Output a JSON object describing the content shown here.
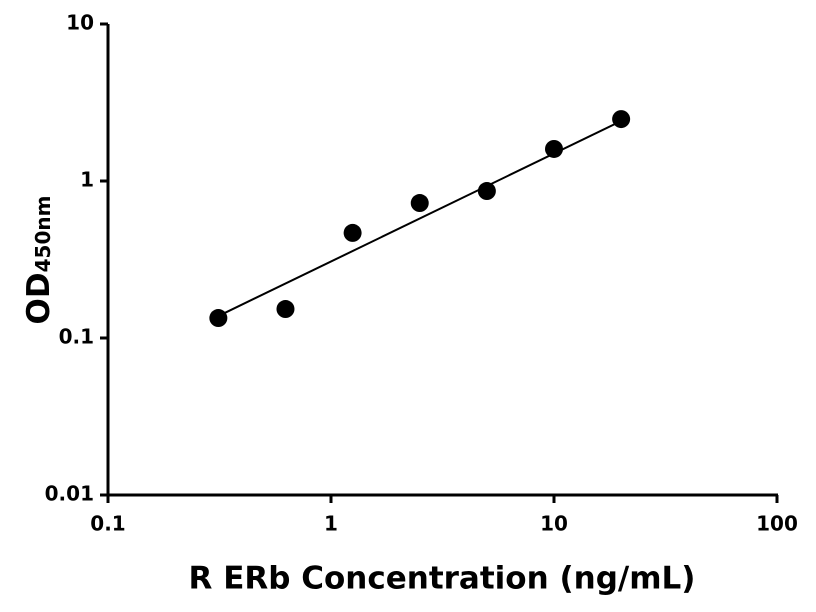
{
  "chart_data": {
    "type": "scatter",
    "x_label": "R ERb Concentration (ng/mL)",
    "y_label": "OD",
    "y_label_subscript": "450nm",
    "xscale": "log",
    "yscale": "log",
    "xlim": [
      0.1,
      100
    ],
    "xticks": [
      0.1,
      1,
      10,
      100
    ],
    "ylim": [
      0.01,
      10
    ],
    "yticks": [
      0.01,
      0.1,
      1,
      10
    ],
    "series": [
      {
        "color": "#000000",
        "x": [
          0.3125,
          0.625,
          1.25,
          2.5,
          5,
          10,
          20
        ],
        "values": [
          0.134,
          0.153,
          0.467,
          0.724,
          0.863,
          1.6,
          2.48
        ]
      }
    ],
    "fit": {
      "color": "#000000",
      "x": [
        0.3125,
        20
      ],
      "values": [
        0.138,
        2.41
      ]
    }
  }
}
